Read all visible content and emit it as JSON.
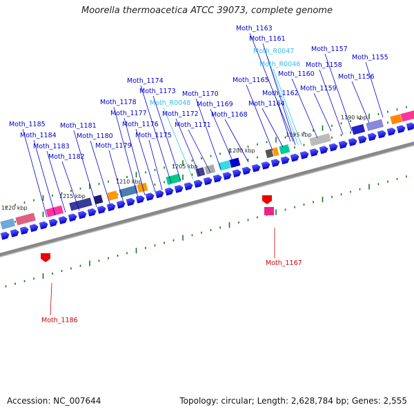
{
  "title": "Moorella thermoacetica ATCC 39073, complete genome",
  "footer": {
    "accession": "Accession: NC_007644",
    "summary": "Topology: circular; Length: 2,628,784 bp; Genes: 2,555"
  },
  "colors": {
    "gene_label": "#0000cc",
    "rna_label": "#33bbee",
    "reverse_label": "#cc0000",
    "backbone": "#888888",
    "tick": "#117711",
    "cds_arrow": "#0000ee"
  },
  "scale_ticks": [
    {
      "label": "1190 kbp"
    },
    {
      "label": "1195 kbp"
    },
    {
      "label": "1200 kbp"
    },
    {
      "label": "1205 kbp"
    },
    {
      "label": "1210 kbp"
    },
    {
      "label": "1215 kbp"
    },
    {
      "label": "1220 kbp"
    }
  ],
  "forward_labels": [
    {
      "label": "Moth_1155",
      "type": "gene"
    },
    {
      "label": "Moth_1156",
      "type": "gene"
    },
    {
      "label": "Moth_1157",
      "type": "gene"
    },
    {
      "label": "Moth_1158",
      "type": "gene"
    },
    {
      "label": "Moth_1159",
      "type": "gene"
    },
    {
      "label": "Moth_1160",
      "type": "gene"
    },
    {
      "label": "Moth_R0046",
      "type": "rna"
    },
    {
      "label": "Moth_R0047",
      "type": "rna"
    },
    {
      "label": "Moth_1161",
      "type": "gene"
    },
    {
      "label": "Moth_1163",
      "type": "gene"
    },
    {
      "label": "Moth_1162",
      "type": "gene"
    },
    {
      "label": "Moth_1164",
      "type": "gene"
    },
    {
      "label": "Moth_1165",
      "type": "gene"
    },
    {
      "label": "Moth_1168",
      "type": "gene"
    },
    {
      "label": "Moth_1169",
      "type": "gene"
    },
    {
      "label": "Moth_1170",
      "type": "gene"
    },
    {
      "label": "Moth_1171",
      "type": "gene"
    },
    {
      "label": "Moth_1172",
      "type": "gene"
    },
    {
      "label": "Moth_R0048",
      "type": "rna"
    },
    {
      "label": "Moth_1173",
      "type": "gene"
    },
    {
      "label": "Moth_1174",
      "type": "gene"
    },
    {
      "label": "Moth_1175",
      "type": "gene"
    },
    {
      "label": "Moth_1176",
      "type": "gene"
    },
    {
      "label": "Moth_1177",
      "type": "gene"
    },
    {
      "label": "Moth_1178",
      "type": "gene"
    },
    {
      "label": "Moth_1179",
      "type": "gene"
    },
    {
      "label": "Moth_1180",
      "type": "gene"
    },
    {
      "label": "Moth_1181",
      "type": "gene"
    },
    {
      "label": "Moth_1182",
      "type": "gene"
    },
    {
      "label": "Moth_1183",
      "type": "gene"
    },
    {
      "label": "Moth_1184",
      "type": "gene"
    },
    {
      "label": "Moth_1185",
      "type": "gene"
    }
  ],
  "reverse_labels": [
    {
      "label": "Moth_1167",
      "type": "reverse"
    },
    {
      "label": "Moth_1186",
      "type": "reverse"
    }
  ]
}
